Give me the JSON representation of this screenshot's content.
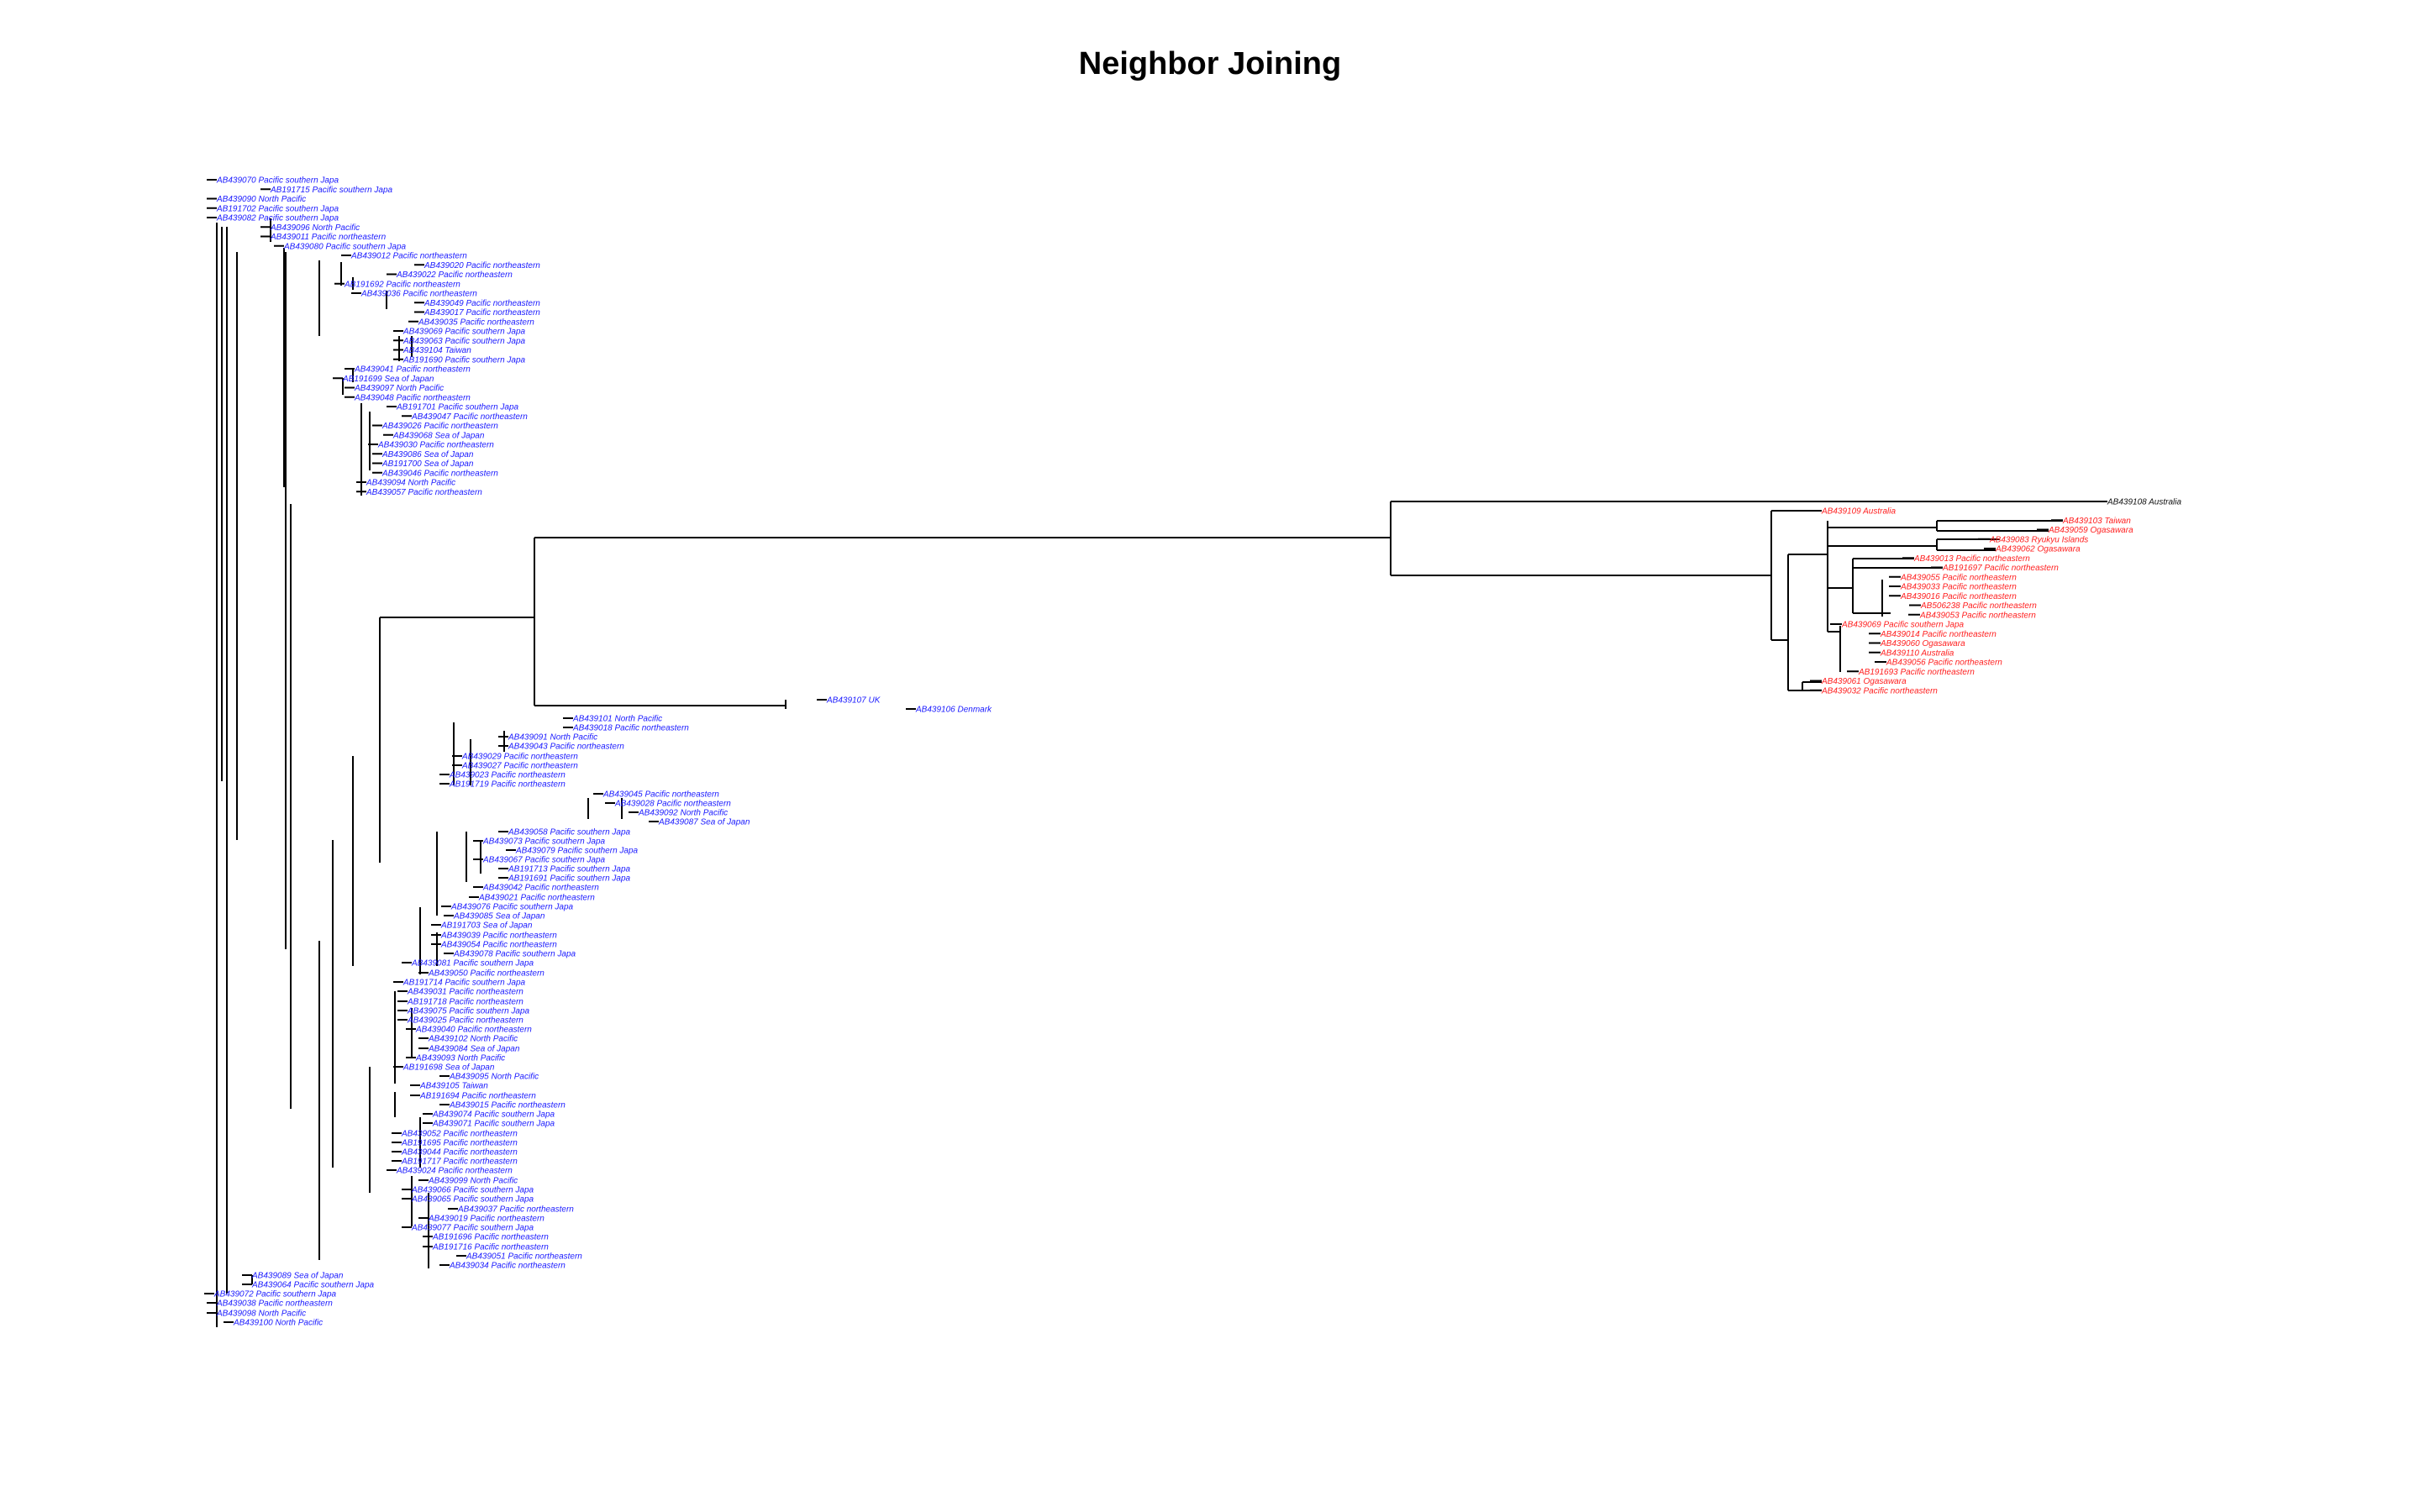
{
  "title": "Neighbor Joining",
  "colors": {
    "blue": "#1a1aff",
    "red": "#ff2020",
    "black": "#111111"
  },
  "leaves": {
    "blue1": [
      "AB439070 Pacific southern Japa",
      "AB191715 Pacific southern Japa",
      "AB439090 North Pacific",
      "AB191702 Pacific southern Japa",
      "AB439082 Pacific southern Japa",
      "AB439096 North Pacific",
      "AB439011 Pacific northeastern",
      "AB439080 Pacific southern Japa",
      "AB439012 Pacific northeastern",
      "AB439020 Pacific northeastern",
      "AB439022 Pacific northeastern",
      "AB191692 Pacific northeastern",
      "AB439036 Pacific northeastern",
      "AB439049 Pacific northeastern",
      "AB439017 Pacific northeastern",
      "AB439035 Pacific northeastern",
      "AB439069 Pacific southern Japa",
      "AB439063 Pacific southern Japa",
      "AB439104 Taiwan",
      "AB191690 Pacific southern Japa",
      "AB439041 Pacific northeastern",
      "AB191699 Sea of Japan",
      "AB439097 North Pacific",
      "AB439048 Pacific northeastern",
      "AB191701 Pacific southern Japa",
      "AB439047 Pacific northeastern",
      "AB439026 Pacific northeastern",
      "AB439068 Sea of Japan",
      "AB439030 Pacific northeastern",
      "AB439086 Sea of Japan",
      "AB191700 Sea of Japan",
      "AB439046 Pacific northeastern",
      "AB439094 North Pacific",
      "AB439057 Pacific northeastern"
    ],
    "blue2": [
      "AB439107 UK",
      "AB439106 Denmark",
      "AB439101 North Pacific",
      "AB439018 Pacific northeastern",
      "AB439091 North Pacific",
      "AB439043 Pacific northeastern",
      "AB439029 Pacific northeastern",
      "AB439027 Pacific northeastern",
      "AB439023 Pacific northeastern",
      "AB191719 Pacific northeastern",
      "AB439045 Pacific northeastern",
      "AB439028 Pacific northeastern",
      "AB439092 North Pacific",
      "AB439087 Sea of Japan",
      "AB439058 Pacific southern Japa",
      "AB439073 Pacific southern Japa",
      "AB439079 Pacific southern Japa",
      "AB439067 Pacific southern Japa",
      "AB191713 Pacific southern Japa",
      "AB191691 Pacific southern Japa",
      "AB439042 Pacific northeastern",
      "AB439021 Pacific northeastern",
      "AB439076 Pacific southern Japa",
      "AB439085 Sea of Japan",
      "AB191703 Sea of Japan",
      "AB439039 Pacific northeastern",
      "AB439054 Pacific northeastern",
      "AB439078 Pacific southern Japa",
      "AB439081 Pacific southern Japa",
      "AB439050 Pacific northeastern",
      "AB191714 Pacific southern Japa",
      "AB439031 Pacific northeastern",
      "AB191718 Pacific northeastern",
      "AB439075 Pacific southern Japa",
      "AB439025 Pacific northeastern",
      "AB439040 Pacific northeastern",
      "AB439102 North Pacific",
      "AB439084 Sea of Japan",
      "AB439093 North Pacific",
      "AB191698 Sea of Japan",
      "AB439095 North Pacific",
      "AB439105 Taiwan",
      "AB191694 Pacific northeastern",
      "AB439015 Pacific northeastern",
      "AB439074 Pacific southern Japa",
      "AB439071 Pacific southern Japa",
      "AB439052 Pacific northeastern",
      "AB191695 Pacific northeastern",
      "AB439044 Pacific northeastern",
      "AB191717 Pacific northeastern",
      "AB439024 Pacific northeastern",
      "AB439099 North Pacific",
      "AB439066 Pacific southern Japa",
      "AB439065 Pacific southern Japa",
      "AB439037 Pacific northeastern",
      "AB439019 Pacific northeastern",
      "AB439077 Pacific southern Japa",
      "AB191696 Pacific northeastern",
      "AB191716 Pacific northeastern",
      "AB439051 Pacific northeastern",
      "AB439034 Pacific northeastern",
      "AB439089 Sea of Japan",
      "AB439064 Pacific southern Japa",
      "AB439072 Pacific southern Japa",
      "AB439038 Pacific northeastern",
      "AB439098 North Pacific",
      "AB439100 North Pacific"
    ],
    "black": [
      "AB439108 Australia"
    ],
    "red": [
      "AB439109 Australia",
      "AB439103 Taiwan",
      "AB439059 Ogasawara",
      "AB439083 Ryukyu Islands",
      "AB439062 Ogasawara",
      "AB439013 Pacific northeastern",
      "AB191697 Pacific northeastern",
      "AB439055 Pacific northeastern",
      "AB439033 Pacific northeastern",
      "AB439016 Pacific northeastern",
      "AB506238 Pacific northeastern",
      "AB439053 Pacific northeastern",
      "AB439069 Pacific southern Japa",
      "AB439014 Pacific northeastern",
      "AB439060 Ogasawara",
      "AB439110 Australia",
      "AB439056 Pacific northeastern",
      "AB191693 Pacific northeastern",
      "AB439061 Ogasawara",
      "AB439032 Pacific northeastern"
    ]
  }
}
